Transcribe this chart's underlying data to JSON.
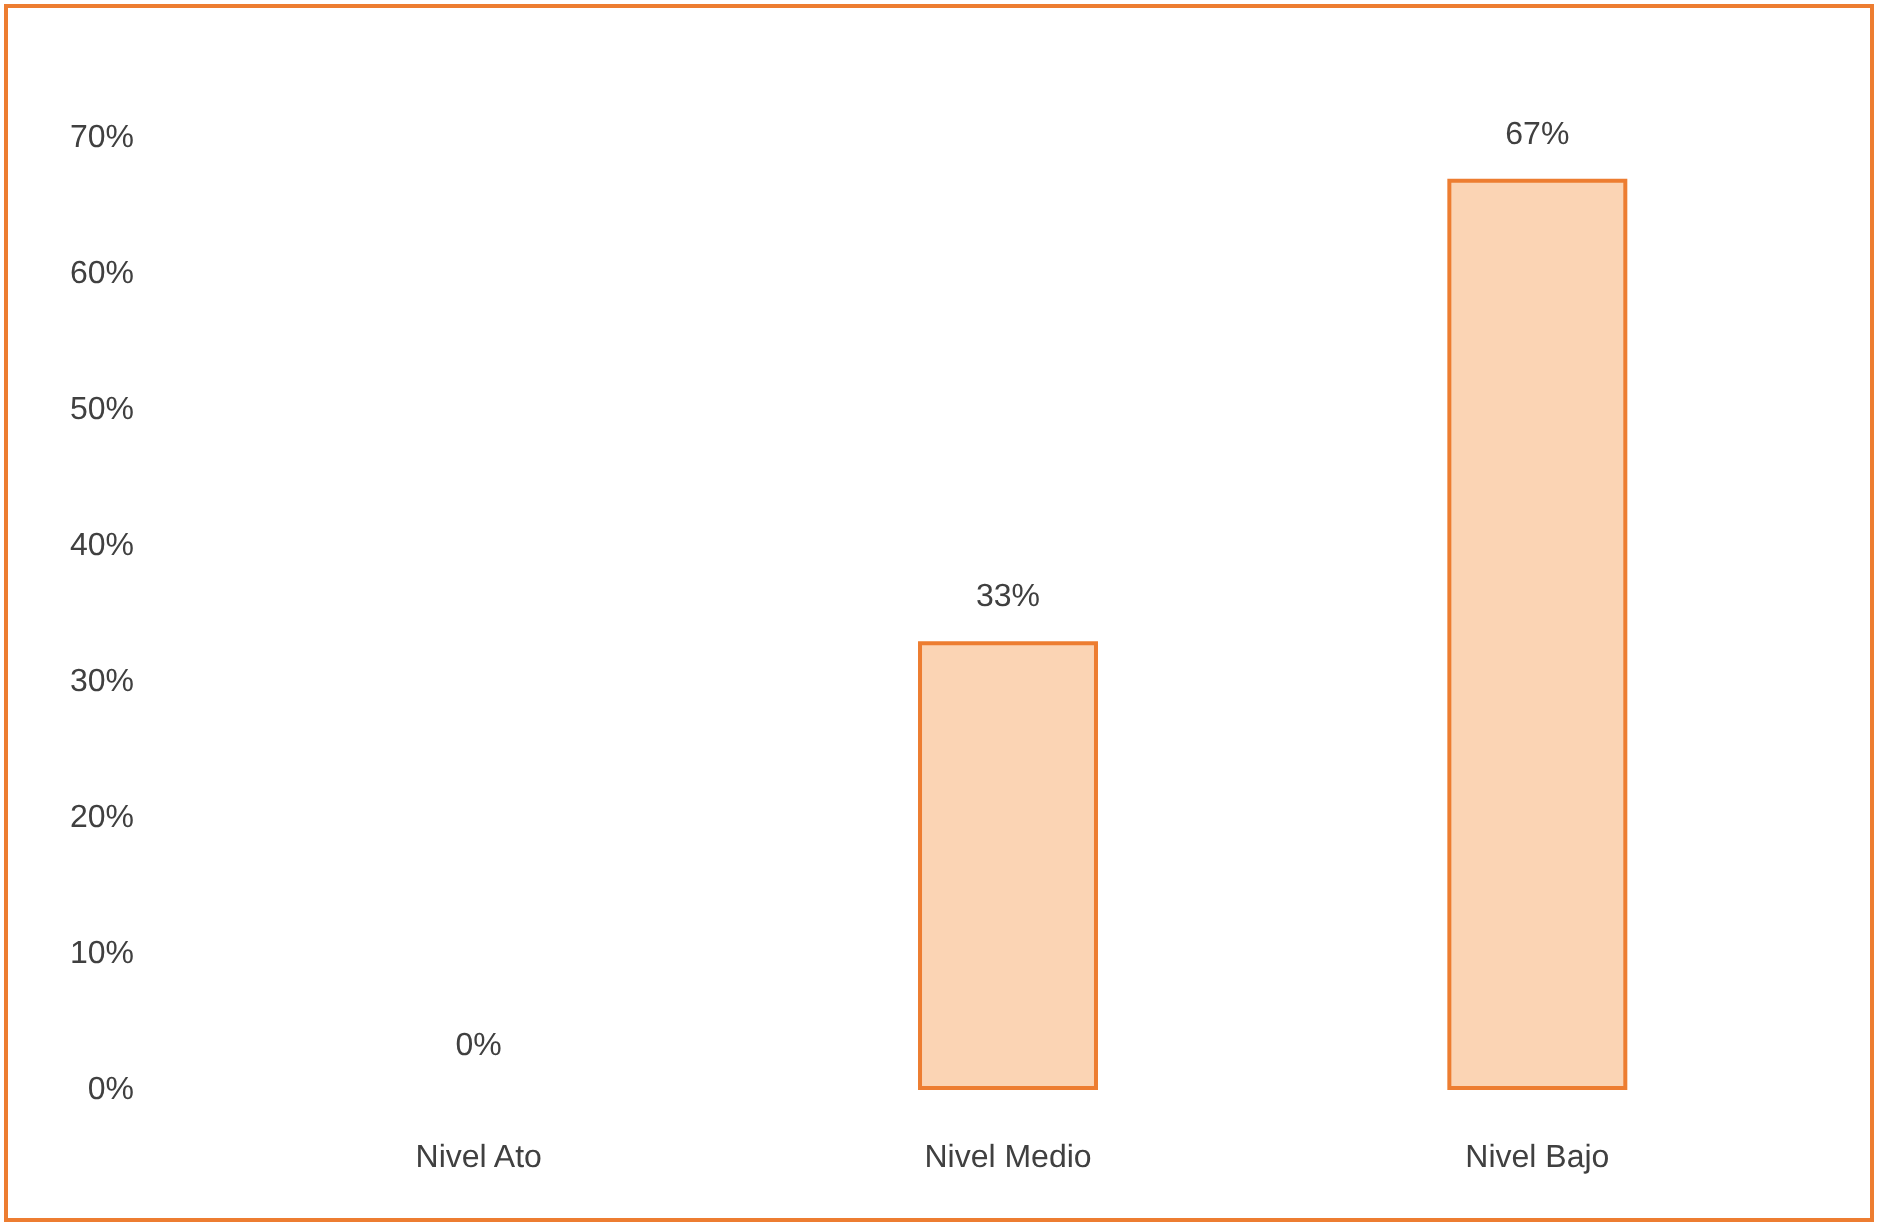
{
  "chart_data": {
    "type": "bar",
    "categories": [
      "Nivel Ato",
      "Nivel Medio",
      "Nivel Bajo"
    ],
    "values": [
      0,
      33,
      67
    ],
    "color": "#fbd4b4",
    "value_labels": [
      "0%",
      "33%",
      "67%"
    ],
    "ylim": [
      0,
      70
    ],
    "yticks": [
      {
        "value": 0,
        "label": "0%"
      },
      {
        "value": 10,
        "label": "10%"
      },
      {
        "value": 20,
        "label": "20%"
      },
      {
        "value": 30,
        "label": "30%"
      },
      {
        "value": 40,
        "label": "40%"
      },
      {
        "value": 50,
        "label": "50%"
      },
      {
        "value": 60,
        "label": "60%"
      },
      {
        "value": 70,
        "label": "70%"
      }
    ],
    "grid": false
  }
}
